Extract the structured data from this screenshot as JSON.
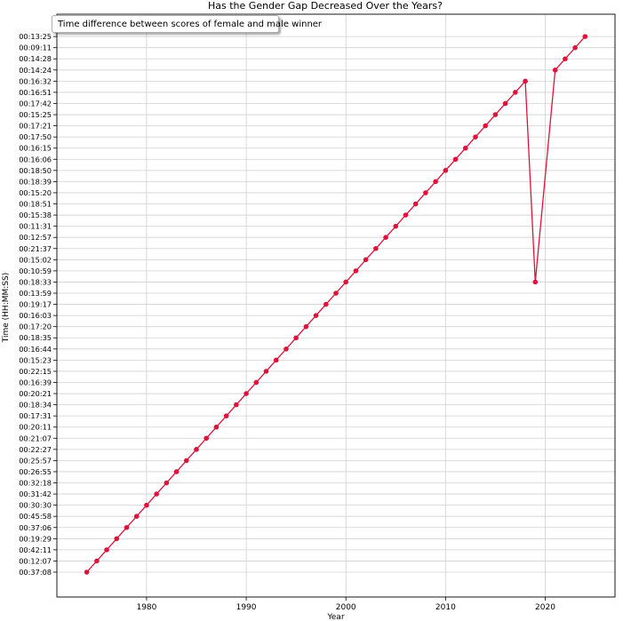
{
  "chart_data": {
    "type": "line",
    "title": "Has the Gender Gap Decreased Over the Years?",
    "xlabel": "Year",
    "ylabel": "Time (HH:MM:SS)",
    "legend": "Time difference between scores of female and male winner",
    "legend_position": "top-left",
    "grid": true,
    "xlim": [
      1971,
      2027
    ],
    "x_ticks": [
      1980,
      1990,
      2000,
      2010,
      2020
    ],
    "y_categories": [
      "00:37:08",
      "00:12:07",
      "00:42:11",
      "00:19:29",
      "00:37:06",
      "00:45:58",
      "00:30:30",
      "00:31:42",
      "00:32:18",
      "00:26:55",
      "00:25:57",
      "00:22:27",
      "00:21:07",
      "00:20:11",
      "00:17:31",
      "00:18:34",
      "00:20:21",
      "00:16:39",
      "00:22:15",
      "00:15:23",
      "00:16:44",
      "00:18:35",
      "00:17:20",
      "00:16:03",
      "00:19:17",
      "00:13:59",
      "00:18:33",
      "00:10:59",
      "00:15:02",
      "00:21:37",
      "00:12:57",
      "00:11:31",
      "00:15:38",
      "00:18:51",
      "00:15:20",
      "00:18:39",
      "00:18:50",
      "00:16:06",
      "00:16:15",
      "00:17:50",
      "00:17:21",
      "00:15:25",
      "00:17:42",
      "00:16:51",
      "00:16:32",
      "00:14:24",
      "00:14:28",
      "00:09:11",
      "00:13:25"
    ],
    "x": [
      1974,
      1975,
      1976,
      1977,
      1978,
      1979,
      1980,
      1981,
      1982,
      1983,
      1984,
      1985,
      1986,
      1987,
      1988,
      1989,
      1990,
      1991,
      1992,
      1993,
      1994,
      1995,
      1996,
      1997,
      1998,
      1999,
      2000,
      2001,
      2002,
      2003,
      2004,
      2005,
      2006,
      2007,
      2008,
      2009,
      2010,
      2011,
      2012,
      2013,
      2014,
      2015,
      2016,
      2017,
      2018,
      2019,
      2021,
      2022,
      2023,
      2024
    ],
    "series": [
      {
        "values": [
          "00:37:08",
          "00:12:07",
          "00:42:11",
          "00:19:29",
          "00:37:06",
          "00:45:58",
          "00:30:30",
          "00:31:42",
          "00:32:18",
          "00:26:55",
          "00:25:57",
          "00:22:27",
          "00:21:07",
          "00:20:11",
          "00:17:31",
          "00:18:34",
          "00:20:21",
          "00:16:39",
          "00:22:15",
          "00:15:23",
          "00:16:44",
          "00:18:35",
          "00:17:20",
          "00:16:03",
          "00:19:17",
          "00:13:59",
          "00:18:33",
          "00:10:59",
          "00:15:02",
          "00:21:37",
          "00:12:57",
          "00:11:31",
          "00:15:38",
          "00:18:51",
          "00:15:20",
          "00:18:39",
          "00:18:50",
          "00:16:06",
          "00:16:15",
          "00:17:50",
          "00:17:21",
          "00:15:25",
          "00:17:42",
          "00:16:51",
          "00:16:32",
          "00:18:33",
          "00:14:24",
          "00:14:28",
          "00:09:11",
          "00:13:25"
        ],
        "color": "#dc143c"
      }
    ]
  }
}
